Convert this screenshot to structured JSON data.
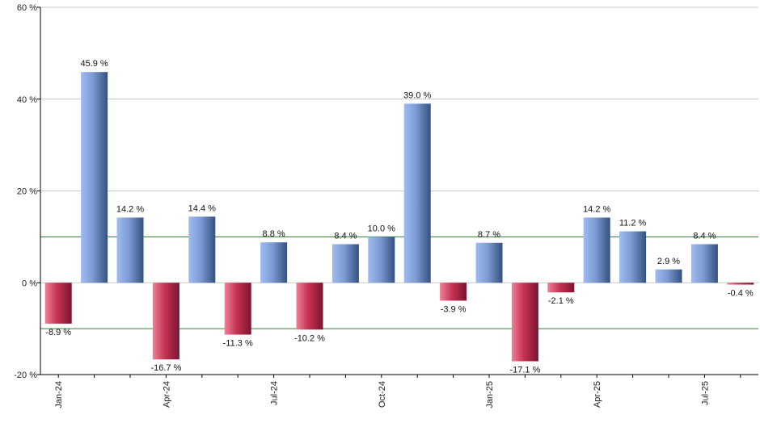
{
  "chart_data": {
    "type": "bar",
    "title": "",
    "xlabel": "",
    "ylabel": "",
    "ylim": [
      -20,
      60
    ],
    "yticks": [
      -20,
      0,
      20,
      40,
      60
    ],
    "ytick_labels": [
      "-20 %",
      "0 %",
      "20 %",
      "40 %",
      "60 %"
    ],
    "grid": true,
    "reference_lines": [
      10,
      -10
    ],
    "categories": [
      "Jan-24",
      "Feb-24",
      "Mar-24",
      "Apr-24",
      "May-24",
      "Jun-24",
      "Jul-24",
      "Aug-24",
      "Sep-24",
      "Oct-24",
      "Nov-24",
      "Dec-24",
      "Jan-25",
      "Feb-25",
      "Mar-25",
      "Apr-25",
      "May-25",
      "Jun-25",
      "Jul-25",
      "Aug-25"
    ],
    "xtick_labels": [
      "Jan-24",
      "",
      "",
      "Apr-24",
      "",
      "",
      "Jul-24",
      "",
      "",
      "Oct-24",
      "",
      "",
      "Jan-25",
      "",
      "",
      "Apr-25",
      "",
      "",
      "Jul-25",
      ""
    ],
    "values": [
      -8.9,
      45.9,
      14.2,
      -16.7,
      14.4,
      -11.3,
      8.8,
      -10.2,
      8.4,
      10.0,
      39.0,
      -3.9,
      8.7,
      -17.1,
      -2.1,
      14.2,
      11.2,
      2.9,
      8.4,
      -0.4
    ],
    "value_labels": [
      "-8.9 %",
      "45.9 %",
      "14.2 %",
      "-16.7 %",
      "14.4 %",
      "-11.3 %",
      "8.8 %",
      "-10.2 %",
      "8.4 %",
      "10.0 %",
      "39.0 %",
      "-3.9 %",
      "8.7 %",
      "-17.1 %",
      "-2.1 %",
      "14.2 %",
      "11.2 %",
      "2.9 %",
      "8.4 %",
      "-0.4 %"
    ],
    "colors": {
      "positive_light": "#a8c4f0",
      "positive_dark": "#35507e",
      "negative_light": "#f07a90",
      "negative_dark": "#7e1630",
      "gridline": "#c8c8c8",
      "reference": "#2e7d32",
      "axis": "#000000"
    }
  }
}
